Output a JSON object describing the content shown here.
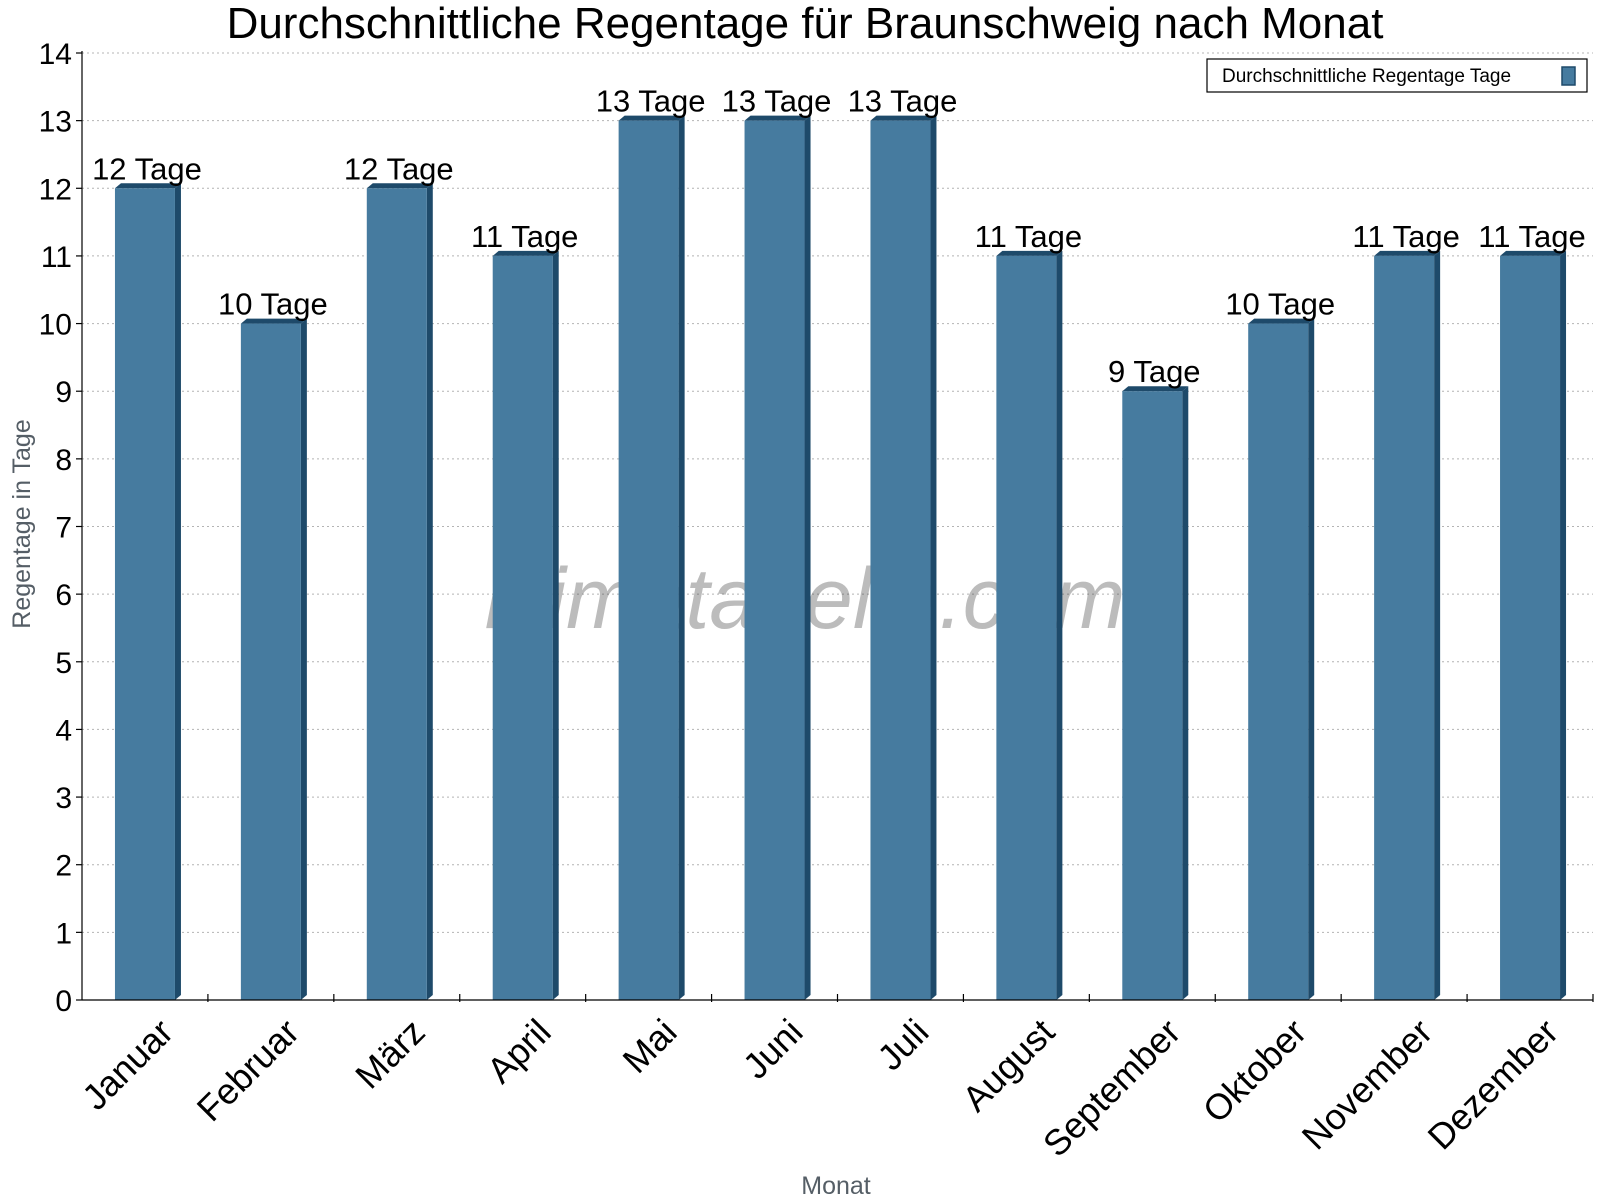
{
  "chart_data": {
    "type": "bar",
    "title": "Durchschnittliche Regentage für Braunschweig nach Monat",
    "xlabel": "Monat",
    "ylabel": "Regentage in Tage",
    "categories": [
      "Januar",
      "Februar",
      "März",
      "April",
      "Mai",
      "Juni",
      "Juli",
      "August",
      "September",
      "Oktober",
      "November",
      "Dezember"
    ],
    "series": [
      {
        "name": "Durchschnittliche Regentage Tage",
        "values": [
          12,
          10,
          12,
          11,
          13,
          13,
          13,
          11,
          9,
          10,
          11,
          11
        ],
        "labels": [
          "12 Tage",
          "10 Tage",
          "12 Tage",
          "11 Tage",
          "13 Tage",
          "13 Tage",
          "13 Tage",
          "11 Tage",
          "9 Tage",
          "10 Tage",
          "11 Tage",
          "11 Tage"
        ]
      }
    ],
    "ylim": [
      0,
      14
    ],
    "yticks": [
      0,
      1,
      2,
      3,
      4,
      5,
      6,
      7,
      8,
      9,
      10,
      11,
      12,
      13,
      14
    ],
    "grid": "horizontal dotted",
    "legend_position": "top-right",
    "colors": {
      "bar": "#467b9f",
      "bar_side": "#1e4a6a",
      "bar_top": "#1e4a6a",
      "legend_swatch": "#467b9f"
    }
  },
  "watermark": "klimatabelle.com"
}
